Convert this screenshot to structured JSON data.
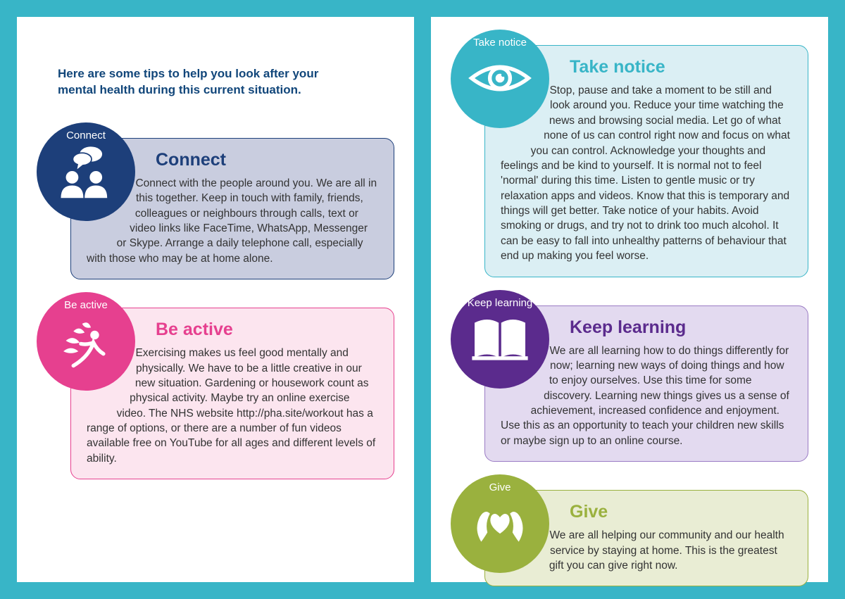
{
  "intro": "Here are some tips to help you look after your mental health during this current situation.",
  "cards": {
    "connect": {
      "badge": "Connect",
      "title": "Connect",
      "body": "Connect with the people around you. We are all in this together. Keep in touch with family, friends, colleagues or neighbours through calls, text or video links like FaceTime, WhatsApp, Messenger or Skype. Arrange a daily telephone call, especially with those who may be at home alone.",
      "badge_bg": "#1d3f7a",
      "title_color": "#1d3f7a",
      "card_bg": "#c9cddf",
      "card_border": "#1d3f7a",
      "indent1": "98px",
      "indent2": "0px"
    },
    "beactive": {
      "badge": "Be active",
      "title": "Be active",
      "body": "Exercising makes us feel good mentally and physically. We have to be a little creative in our new situation. Gardening or housework count as physical activity. Maybe try an online exercise video. The NHS website http://pha.site/workout has a range of options, or there are a number of fun videos available free on YouTube for all ages and different levels of ability.",
      "badge_bg": "#e6408f",
      "title_color": "#e6408f",
      "card_bg": "#fce5ef",
      "card_border": "#e6408f",
      "indent1": "98px",
      "indent2": "0px"
    },
    "takenotice": {
      "badge": "Take notice",
      "title": "Take notice",
      "body": "Stop, pause and take a moment to be still and look around you. Reduce your time watching the news and browsing social media. Let go of what none of us can control right now and focus on what you can control. Acknowledge your thoughts and feelings and be kind to yourself. It is normal not to feel 'normal' during this time. Listen to gentle music or try relaxation apps and videos. Know that this is temporary and things will get better. Take notice of your habits. Avoid smoking or drugs, and try not to drink too much alcohol. It can be easy to fall into unhealthy patterns of behaviour that end up making you feel worse.",
      "badge_bg": "#38b5c7",
      "title_color": "#38b5c7",
      "card_bg": "#dbeff4",
      "card_border": "#38b5c7",
      "indent1": "98px",
      "indent2": "0px"
    },
    "keeplearning": {
      "badge": "Keep learning",
      "title": "Keep learning",
      "body": "We are all learning how to do things differently for now; learning new ways of doing things and how to enjoy ourselves. Use this time for some discovery. Learning new things gives us a sense of achievement, increased confidence and enjoyment. Use this as an opportunity to teach your children new skills or maybe sign up to an online course.",
      "badge_bg": "#5b2b8d",
      "title_color": "#5b2b8d",
      "card_bg": "#e3daf0",
      "card_border": "#9a7bc4",
      "indent1": "98px",
      "indent2": "0px"
    },
    "give": {
      "badge": "Give",
      "title": "Give",
      "body": "We are all helping our community and our health service by staying at home. This is the greatest gift you can give right now.",
      "badge_bg": "#9ab13e",
      "title_color": "#9ab13e",
      "card_bg": "#e9edd4",
      "card_border": "#9ab13e",
      "indent1": "98px",
      "indent2": "98px"
    }
  }
}
